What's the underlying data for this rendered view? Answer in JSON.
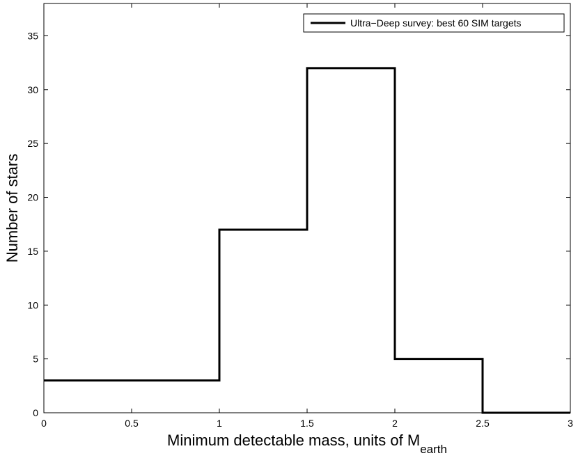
{
  "chart_data": {
    "type": "histogram",
    "bin_edges": [
      0,
      0.5,
      1,
      1.5,
      2,
      2.5,
      3
    ],
    "counts": [
      3,
      3,
      17,
      32,
      5,
      0
    ],
    "series": [
      {
        "name": "Ultra−Deep survey: best 60 SIM targets",
        "color": "#000000"
      }
    ],
    "xlabel": "Minimum detectable mass, units of M",
    "xlabel_subscript": "earth",
    "ylabel": "Number of stars",
    "xlim": [
      0,
      3
    ],
    "ylim": [
      0,
      38
    ],
    "xticks": [
      0,
      0.5,
      1,
      1.5,
      2,
      2.5,
      3
    ],
    "xtick_labels": [
      "0",
      "0.5",
      "1",
      "1.5",
      "2",
      "2.5",
      "3"
    ],
    "yticks": [
      0,
      5,
      10,
      15,
      20,
      25,
      30,
      35
    ],
    "ytick_labels": [
      "0",
      "5",
      "10",
      "15",
      "20",
      "25",
      "30",
      "35"
    ],
    "grid": false,
    "legend_position": "top-right"
  }
}
